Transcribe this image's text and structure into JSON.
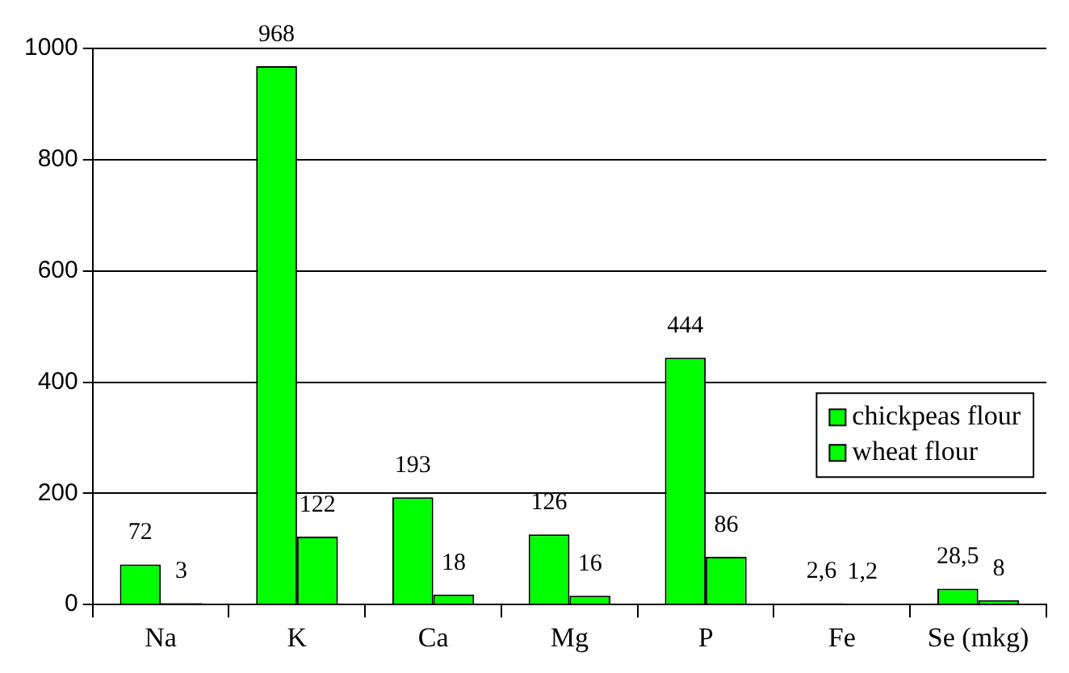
{
  "chart_data": {
    "type": "bar",
    "categories": [
      "Na",
      "K",
      "Ca",
      "Mg",
      "P",
      "Fe",
      "Se (mkg)"
    ],
    "series": [
      {
        "name": "chickpeas flour",
        "color": "#00ff00",
        "values": [
          72,
          968,
          193,
          126,
          444,
          2.6,
          28.5
        ],
        "value_labels": [
          "72",
          "968",
          "193",
          "126",
          "444",
          "2,6",
          "28,5"
        ]
      },
      {
        "name": "wheat flour",
        "color": "#00ff00",
        "values": [
          3,
          122,
          18,
          16,
          86,
          1.2,
          8
        ],
        "value_labels": [
          "3",
          "122",
          "18",
          "16",
          "86",
          "1,2",
          "8"
        ]
      }
    ],
    "ylim": [
      0,
      1000
    ],
    "yticks": [
      0,
      200,
      400,
      600,
      800,
      1000
    ],
    "grid": "y",
    "legend": "right"
  }
}
